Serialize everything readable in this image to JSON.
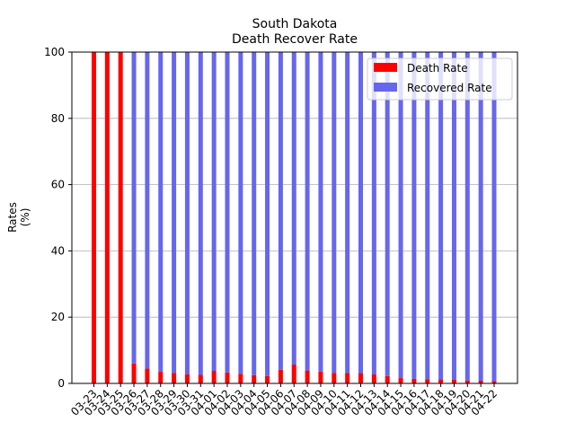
{
  "chart_data": {
    "type": "bar",
    "stacked": true,
    "title": "South Dakota",
    "subtitle": "Death Recover Rate",
    "xlabel": "",
    "ylabel_lines": [
      "Rates",
      "(%)"
    ],
    "ylim": [
      0,
      100
    ],
    "yticks": [
      0,
      20,
      40,
      60,
      80,
      100
    ],
    "grid": "y",
    "legend_position": "top-right",
    "categories": [
      "03-23",
      "03-24",
      "03-25",
      "03-26",
      "03-27",
      "03-28",
      "03-29",
      "03-30",
      "03-31",
      "04-01",
      "04-02",
      "04-03",
      "04-04",
      "04-05",
      "04-06",
      "04-07",
      "04-08",
      "04-09",
      "04-10",
      "04-11",
      "04-12",
      "04-13",
      "04-14",
      "04-15",
      "04-16",
      "04-17",
      "04-18",
      "04-19",
      "04-20",
      "04-21",
      "04-22"
    ],
    "series": [
      {
        "name": "Death Rate",
        "color": "#ff0000",
        "values": [
          100,
          100,
          100,
          6,
          4.5,
          3.5,
          3.2,
          2.8,
          2.6,
          3.8,
          3.3,
          2.9,
          2.5,
          2.2,
          4.1,
          5.7,
          3.9,
          3.6,
          3.2,
          3.1,
          3.1,
          2.7,
          2.2,
          1.6,
          1.4,
          1.3,
          1.2,
          1.1,
          0.9,
          0.8,
          0.7
        ]
      },
      {
        "name": "Recovered Rate",
        "color": "#6666ee",
        "values": [
          0,
          0,
          0,
          94,
          95.5,
          96.5,
          96.8,
          97.2,
          97.4,
          96.2,
          96.7,
          97.1,
          97.5,
          97.8,
          95.9,
          94.3,
          96.1,
          96.4,
          96.8,
          96.9,
          96.9,
          97.3,
          97.8,
          98.4,
          98.6,
          98.7,
          98.8,
          98.9,
          99.1,
          99.2,
          99.3
        ]
      }
    ]
  }
}
